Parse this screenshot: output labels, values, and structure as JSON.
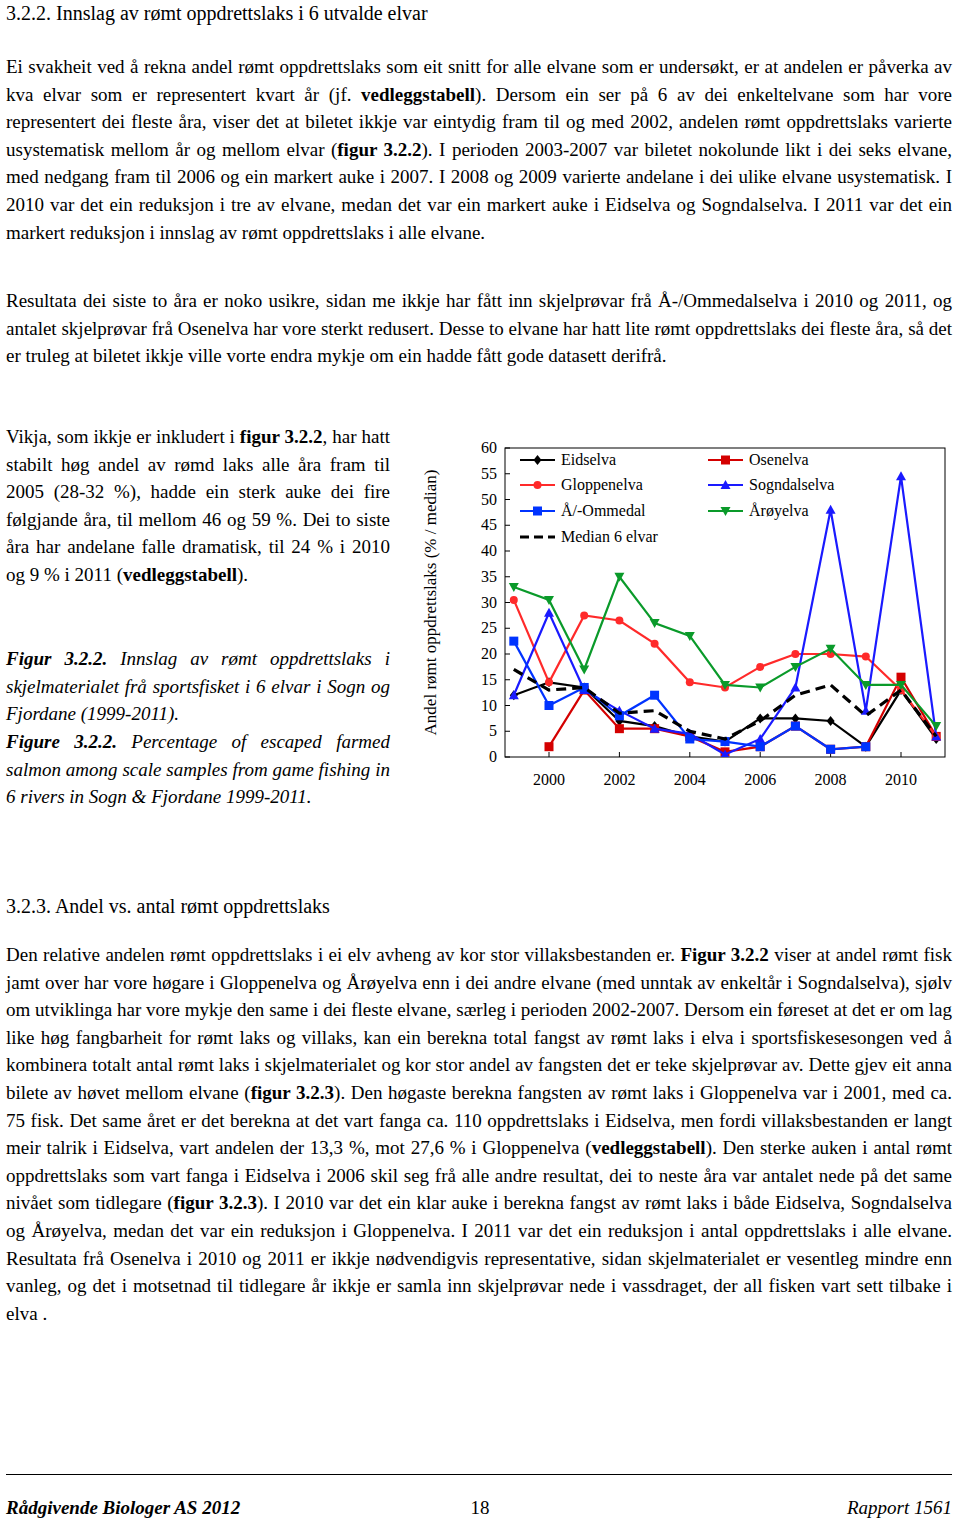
{
  "heading1": "3.2.2. Innslag av rømt oppdrettslaks i 6 utvalde elvar",
  "para1": [
    {
      "text": "Ei svakheit ved å rekna andel rømt oppdrettslaks som eit snitt for alle elvane som er undersøkt, er at andelen er påverka av kva elvar som er representert kvart år (jf. "
    },
    {
      "text": "vedleggstabell",
      "bold": true
    },
    {
      "text": "). Dersom ein ser på 6 av dei enkeltelvane som har vore representert dei fleste åra, viser det at biletet ikkje var eintydig fram til og med 2002, andelen rømt oppdrettslaks varierte usystematisk mellom år og mellom elvar ("
    },
    {
      "text": "figur 3.2.2",
      "bold": true
    },
    {
      "text": "). I perioden 2003-2007 var biletet nokolunde likt i dei seks elvane, med nedgang fram til 2006 og ein markert auke i 2007. I 2008 og 2009 varierte andelane i dei ulike elvane usystematisk. I 2010 var det ein reduksjon i tre av elvane, medan det var ein markert auke i Eidselva og Sogndalselva. I 2011 var det ein markert reduksjon i innslag av rømt oppdrettslaks i alle elvane."
    }
  ],
  "para2": [
    {
      "text": "Resultata dei siste to åra er noko usikre, sidan me ikkje har fått inn skjelprøvar frå Å-/Ommedalselva i 2010 og 2011, og antalet skjelprøvar frå Osenelva har vore sterkt redusert. Desse to elvane har hatt lite rømt oppdrettslaks dei fleste åra, så det er truleg at biletet ikkje ville vorte endra mykje om ein hadde fått gode datasett derifrå."
    }
  ],
  "side_para": [
    {
      "text": "Vikja, som ikkje er inkludert i "
    },
    {
      "text": "figur 3.2.2",
      "bold": true
    },
    {
      "text": ", har hatt stabilt høg andel av rømd laks alle åra fram til 2005 (28-32 %), hadde ein sterk auke dei fire følgjande åra, til mellom 46 og 59 %. Dei to siste åra har andelane falle dramatisk, til 24 % i 2010 og 9 % i 2011 ("
    },
    {
      "text": "vedleggstabell",
      "bold": true
    },
    {
      "text": ")."
    }
  ],
  "caption_no": [
    {
      "text": "Figur 3.2.2.",
      "bold": true
    },
    {
      "text": " Innslag av rømt oppdrettslaks i skjelmaterialet frå sportsfisket i 6 elvar i Sogn og Fjordane (1999-2011)."
    }
  ],
  "caption_en": [
    {
      "text": "Figure 3.2.2.",
      "bold": true
    },
    {
      "text": " Percentage of escaped farmed salmon among scale samples from game fishing in 6 rivers in Sogn & Fjordane 1999-2011."
    }
  ],
  "chart_data": {
    "type": "line",
    "ylabel": "Andel rømt oppdrettslaks (% / median)",
    "x": [
      1999,
      2000,
      2001,
      2002,
      2003,
      2004,
      2005,
      2006,
      2007,
      2008,
      2009,
      2010,
      2011
    ],
    "xlim": [
      1998.75,
      2011.25
    ],
    "xticks": [
      2000,
      2002,
      2004,
      2006,
      2008,
      2010
    ],
    "ylim": [
      0,
      60
    ],
    "yticks": [
      0,
      5,
      10,
      15,
      20,
      25,
      30,
      35,
      40,
      45,
      50,
      55,
      60
    ],
    "grid": false,
    "legend": "top",
    "series": [
      {
        "name": "Eidselva",
        "color": "#000000",
        "marker": "diamond",
        "line_style": "solid",
        "values": [
          12,
          14.5,
          13.5,
          7,
          6,
          4,
          3,
          7.5,
          7.5,
          7,
          2,
          13,
          3.5
        ]
      },
      {
        "name": "Osenelva",
        "color": "#d40000",
        "marker": "square",
        "line_style": "solid",
        "values": [
          null,
          2,
          13,
          5.5,
          5.5,
          4,
          1,
          2,
          6,
          1.5,
          2,
          15.5,
          4
        ]
      },
      {
        "name": "Gloppenelva",
        "color": "#ff2a2a",
        "marker": "circle",
        "line_style": "solid",
        "values": [
          30.5,
          14.5,
          27.5,
          26.5,
          22,
          14.5,
          13.5,
          17.5,
          20,
          20,
          19.5,
          13,
          4
        ]
      },
      {
        "name": "Sogndalselva",
        "color": "#1a1aff",
        "marker": "triangle",
        "line_style": "solid",
        "values": [
          12,
          28,
          13,
          9,
          5.5,
          4.5,
          0.5,
          3.5,
          13.5,
          48,
          9,
          54.5,
          4
        ]
      },
      {
        "name": "Å/-Ommedal",
        "color": "#0033ff",
        "marker": "square",
        "line_style": "solid",
        "values": [
          22.5,
          10,
          13.5,
          8,
          12,
          3.5,
          3,
          2,
          6,
          1.5,
          2,
          null,
          null
        ]
      },
      {
        "name": "Årøyelva",
        "color": "#0a9a2a",
        "marker": "triangle-down",
        "line_style": "solid",
        "values": [
          33,
          30.5,
          17,
          35,
          26,
          23.5,
          14,
          13.5,
          17.5,
          21,
          14,
          14,
          6
        ]
      },
      {
        "name": "Median 6 elvar",
        "color": "#000000",
        "marker": "none",
        "line_style": "dashed",
        "values": [
          17,
          13,
          13.5,
          8.5,
          9,
          5,
          3.5,
          7,
          12,
          14,
          8,
          13,
          4
        ]
      }
    ]
  },
  "heading2": "3.2.3. Andel vs. antal rømt oppdrettslaks",
  "para3": [
    {
      "text": "Den relative andelen rømt oppdrettslaks i ei elv avheng av kor stor villaksbestanden er. "
    },
    {
      "text": "Figur 3.2.2",
      "bold": true
    },
    {
      "text": " viser at andel rømt fisk jamt over har vore høgare i Gloppenelva og Årøyelva enn i dei andre elvane (med unntak av enkeltår i Sogndalselva), sjølv om utviklinga har vore mykje den same i dei fleste elvane, særleg i perioden 2002-2007. Dersom ein føreset at det er om lag like høg fangbarheit for rømt laks og villaks, kan ein berekna total fangst av rømt laks i elva i sportsfiskesesongen ved å kombinera totalt antal rømt laks i skjelmaterialet og kor stor andel av fangsten det er teke skjelprøvar av. Dette gjev eit anna bilete av høvet mellom elvane ("
    },
    {
      "text": "figur 3.2.3",
      "bold": true
    },
    {
      "text": "). Den høgaste berekna fangsten av rømt laks i Gloppenelva var i 2001, med ca. 75 fisk. Det same året er det berekna at det vart fanga ca. 110 oppdrettslaks i Eidselva, men fordi villaksbestanden er langt meir talrik i Eidselva, vart andelen der 13,3 %, mot 27,6 % i Gloppenelva ("
    },
    {
      "text": "vedleggstabell",
      "bold": true
    },
    {
      "text": "). Den sterke auken i antal rømt oppdrettslaks som vart fanga i Eidselva i 2006 skil seg frå alle andre resultat, dei to neste åra var antalet nede på det same nivået som tidlegare ("
    },
    {
      "text": "figur 3.2.3",
      "bold": true
    },
    {
      "text": "). I 2010 var det ein klar auke i berekna fangst av rømt laks i både Eidselva, Sogndalselva og Årøyelva, medan det var ein reduksjon i Gloppenelva. I 2011 var det ein reduksjon i antal oppdrettslaks i alle elvane. Resultata frå Osenelva i 2010 og 2011 er ikkje nødvendigvis representative, sidan skjelmaterialet er vesentleg mindre enn vanleg, og det i motsetnad til tidlegare år ikkje er samla inn skjelprøvar nede i vassdraget, der all fisken vart sett tilbake i elva ."
    }
  ],
  "footer": {
    "left": "Rådgivende Biologer AS 2012",
    "page": "18",
    "right": "Rapport 1561"
  }
}
